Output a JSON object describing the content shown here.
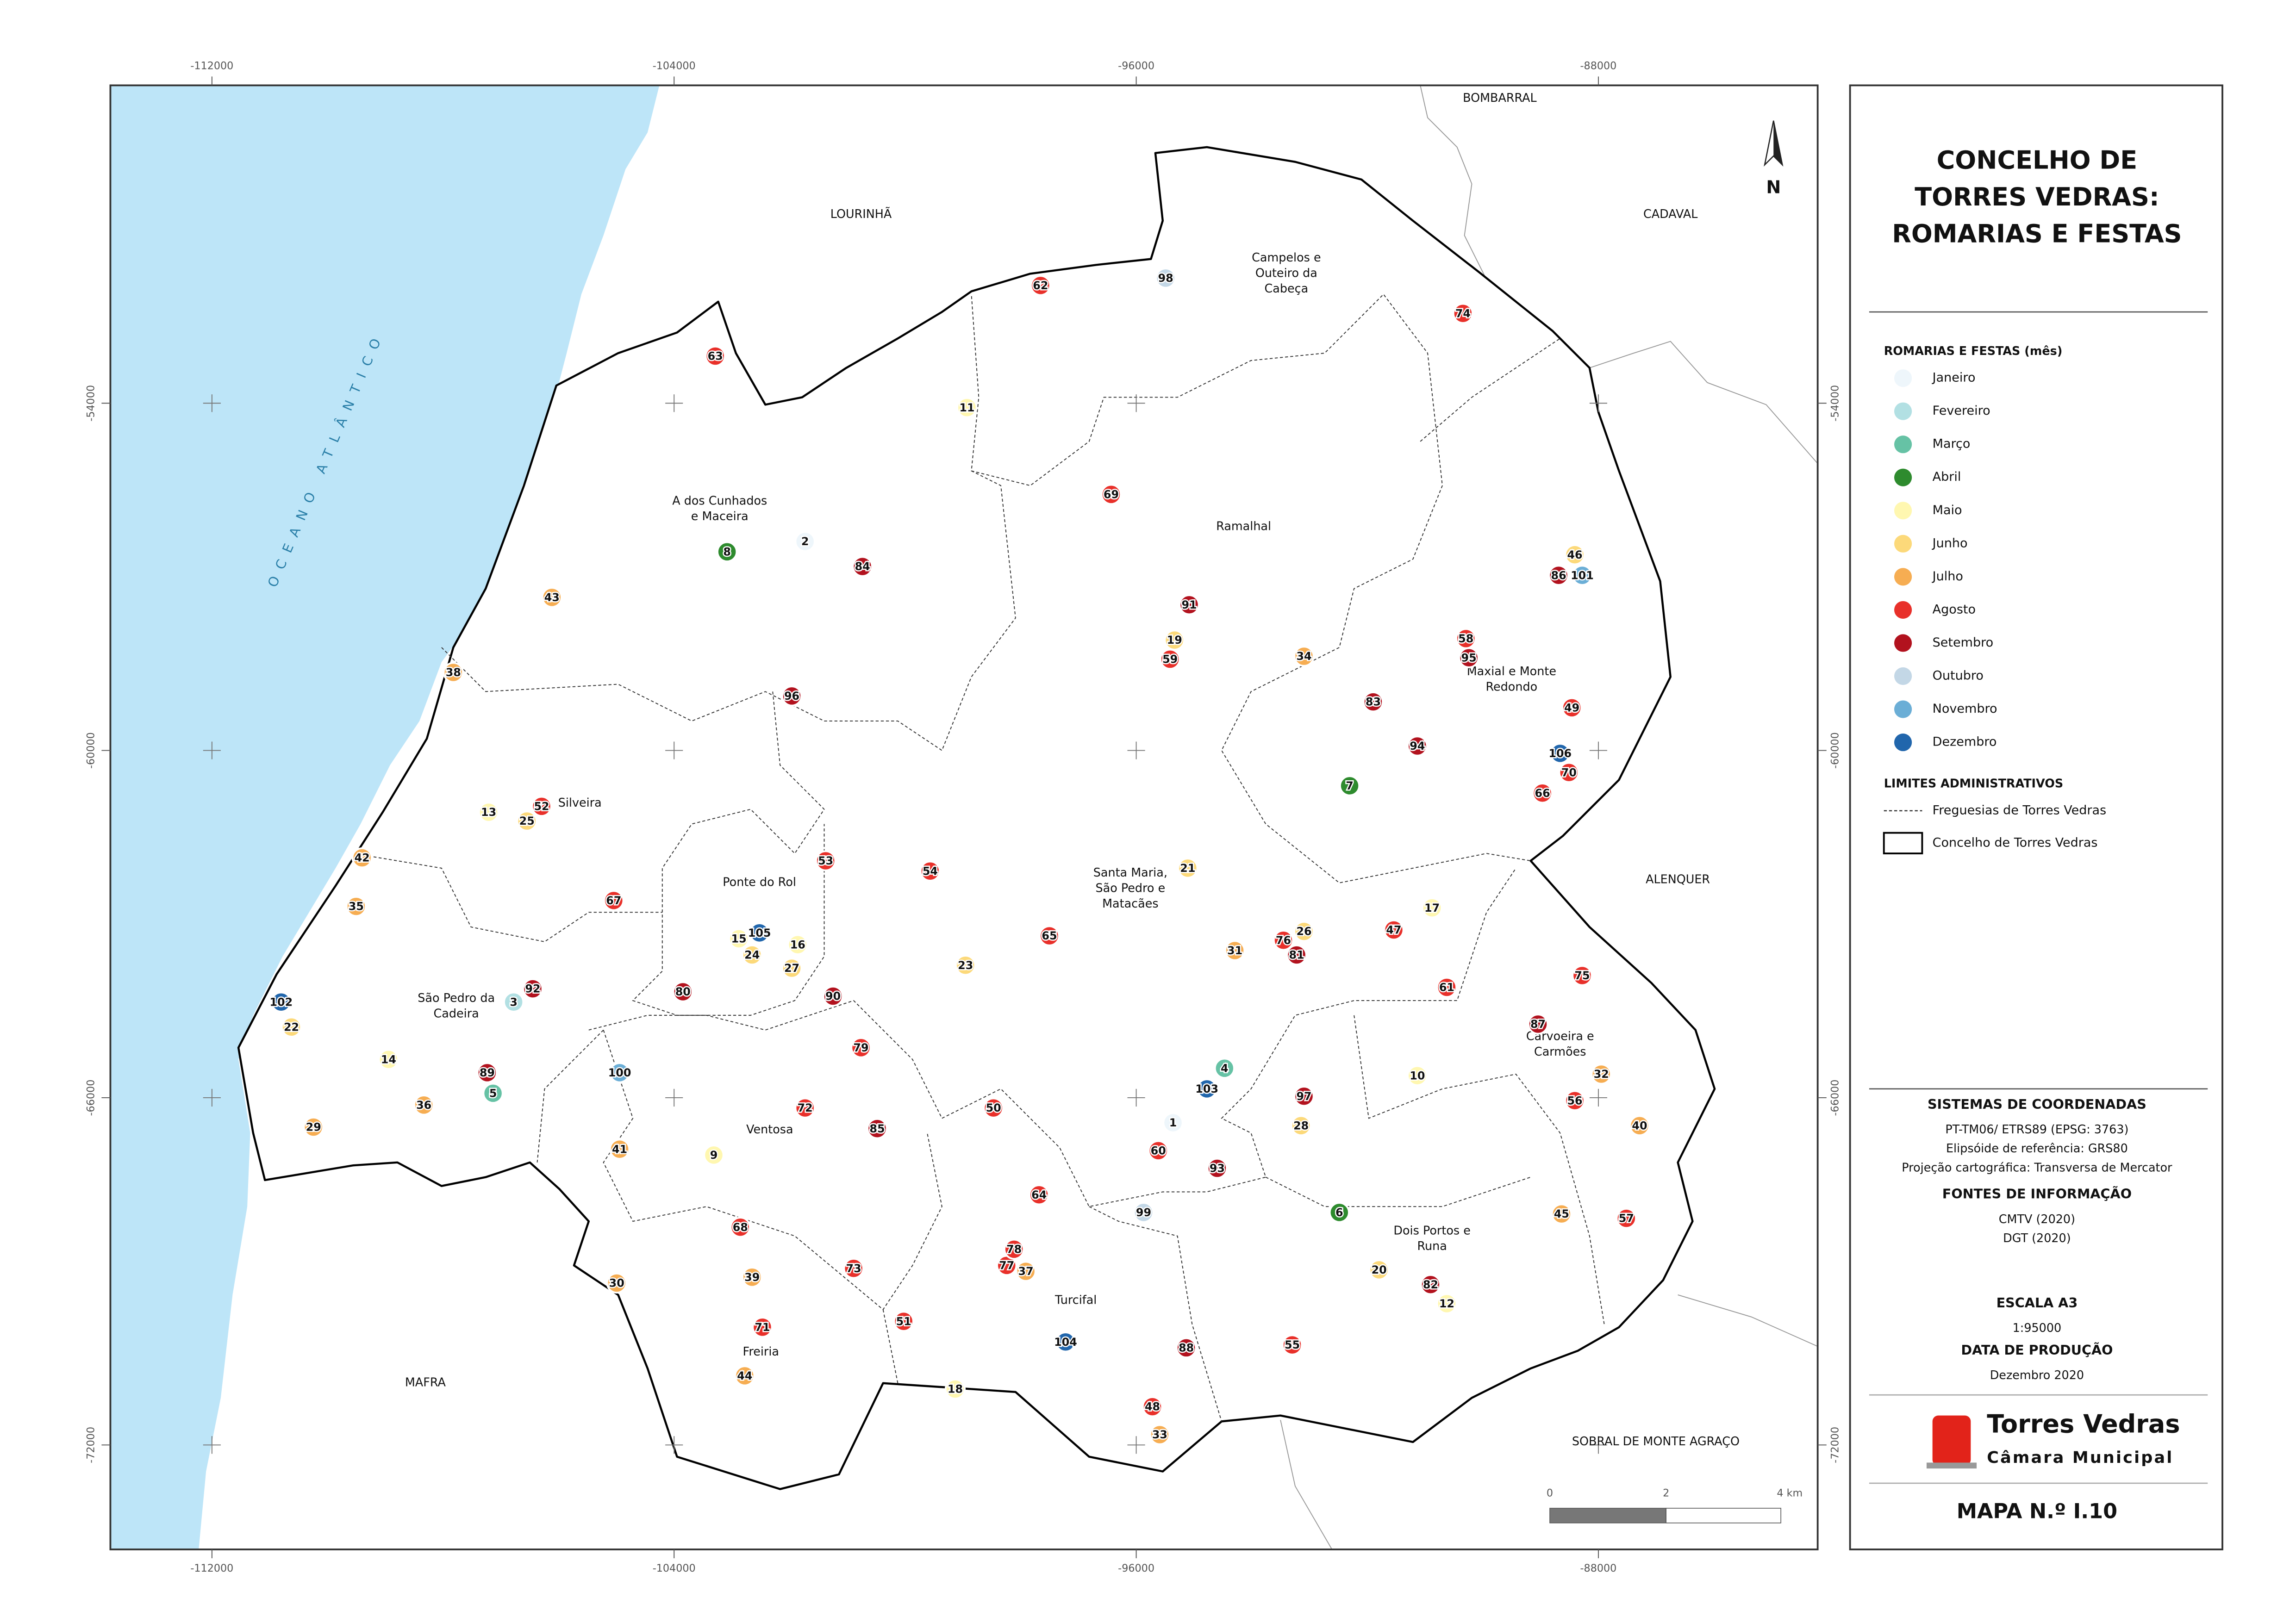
{
  "map": {
    "xlim": [
      -113758,
      -84204
    ],
    "ylim": [
      -73805,
      -48508
    ],
    "xticks": [
      -112000,
      -104000,
      -96000,
      -88000
    ],
    "yticks": [
      -54000,
      -60000,
      -66000,
      -72000
    ],
    "ocean_label": "OCEANO ATLÂNTICO",
    "north": "N",
    "places": [
      [
        "LOURINHÃ"
      ],
      [
        "BOMBARRAL"
      ],
      [
        "CADAVAL"
      ],
      [
        "ALENQUER"
      ],
      [
        "MAFRA"
      ],
      [
        "SOBRAL DE MONTE AGRAÇO"
      ],
      [
        "Campelos e",
        "Outeiro da",
        "Cabeça"
      ],
      [
        "A dos Cunhados",
        "e Maceira"
      ],
      [
        "Ramalhal"
      ],
      [
        "Maxial e Monte",
        "Redondo"
      ],
      [
        "Silveira"
      ],
      [
        "Ponte do Rol"
      ],
      [
        "Santa Maria,",
        "São Pedro e",
        "Matacães"
      ],
      [
        "São Pedro da",
        "Cadeira"
      ],
      [
        "Carvoeira e",
        "Carmões"
      ],
      [
        "Ventosa"
      ],
      [
        "Dois Portos e",
        "Runa"
      ],
      [
        "Turcifal"
      ],
      [
        "Freiria"
      ]
    ],
    "scale_labels": [
      "0",
      "2",
      "4 km"
    ]
  },
  "panel": {
    "title": [
      "CONCELHO DE",
      "TORRES VEDRAS:",
      "ROMARIAS E FESTAS"
    ],
    "legend_title": "ROMARIAS E FESTAS (mês)",
    "items": [
      {
        "label": "Janeiro",
        "color": "#eef6fb",
        "points": [
          "1",
          "2"
        ]
      },
      {
        "label": "Fevereiro",
        "color": "#b2e0e3",
        "points": [
          "3"
        ]
      },
      {
        "label": "Março",
        "color": "#66c2a5",
        "points": [
          "4",
          "5"
        ]
      },
      {
        "label": "Abril",
        "color": "#2e8b2e",
        "points": [
          "6",
          "7",
          "8"
        ]
      },
      {
        "label": "Maio",
        "color": "#fff7b0",
        "points": [
          "9",
          "10",
          "11",
          "12",
          "13",
          "14",
          "15",
          "16",
          "17",
          "18"
        ]
      },
      {
        "label": "Junho",
        "color": "#fcd97a",
        "points": [
          "19",
          "20",
          "21",
          "22",
          "23",
          "24",
          "25",
          "26",
          "27",
          "28",
          "46"
        ]
      },
      {
        "label": "Julho",
        "color": "#f6ad52",
        "points": [
          "29",
          "30",
          "31",
          "32",
          "33",
          "34",
          "35",
          "36",
          "37",
          "38",
          "39",
          "40",
          "41",
          "42",
          "43",
          "44",
          "45"
        ]
      },
      {
        "label": "Agosto",
        "color": "#e8302a",
        "points": [
          "47",
          "48",
          "49",
          "50",
          "51",
          "52",
          "53",
          "54",
          "55",
          "56",
          "57",
          "58",
          "59",
          "60",
          "61",
          "62",
          "63",
          "64",
          "65",
          "66",
          "67",
          "68",
          "69",
          "70",
          "71",
          "72",
          "73",
          "74",
          "75",
          "76",
          "77",
          "78",
          "79"
        ]
      },
      {
        "label": "Setembro",
        "color": "#b2121e",
        "points": [
          "80",
          "81",
          "82",
          "83",
          "84",
          "85",
          "86",
          "87",
          "88",
          "89",
          "90",
          "91",
          "92",
          "93",
          "94",
          "95",
          "96",
          "97"
        ]
      },
      {
        "label": "Outubro",
        "color": "#c3d7e6",
        "points": [
          "98",
          "99"
        ]
      },
      {
        "label": "Novembro",
        "color": "#6baed6",
        "points": [
          "100",
          "101"
        ]
      },
      {
        "label": "Dezembro",
        "color": "#2166ac",
        "points": [
          "102",
          "103",
          "104",
          "105",
          "106"
        ]
      }
    ],
    "limits_title": "LIMITES ADMINISTRATIVOS",
    "limits": [
      "Freguesias de Torres Vedras",
      "Concelho de Torres Vedras"
    ],
    "coords_title": "SISTEMAS DE COORDENADAS",
    "coords": [
      "PT-TM06/ ETRS89 (EPSG: 3763)",
      "Elipsóide de referência: GRS80",
      "Projeção cartográfica: Transversa de Mercator"
    ],
    "sources_title": "FONTES DE INFORMAÇÃO",
    "sources": [
      "CMTV (2020)",
      "DGT (2020)"
    ],
    "scale_title": "ESCALA A3",
    "scale": "1:95000",
    "date_title": "DATA DE PRODUÇÃO",
    "date": "Dezembro 2020",
    "logo": [
      "Torres Vedras",
      "Câmara Municipal"
    ],
    "map_no": "MAPA N.º I.10"
  }
}
